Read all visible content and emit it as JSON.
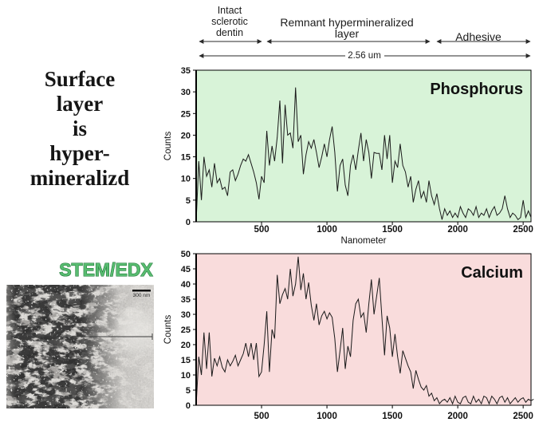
{
  "left_panel": {
    "title": "Surface\nlayer\nis\nhyper-\nmineralizd",
    "technique_label": "STEM/EDX",
    "micrograph": {
      "scale_bar_label": "300 nm"
    }
  },
  "annotations": {
    "zones": [
      {
        "label": "Intact\nsclerotic\ndentin"
      },
      {
        "label": "Remnant hypermineralized\nlayer"
      },
      {
        "label": "Adhesive"
      }
    ],
    "total_width_label": "2.56 um"
  },
  "chart_data": [
    {
      "type": "line",
      "name": "Phosphorus",
      "bg": "#d8f3d8",
      "line_color": "#1a1a1a",
      "xlim": [
        0,
        2560
      ],
      "x_start": 0,
      "x_step": 20,
      "ylim": [
        0,
        35
      ],
      "ytick_step": 5,
      "xticks": [
        500,
        1000,
        1500,
        2000,
        2500
      ],
      "xlabel": "Nanometer",
      "ylabel": "Counts",
      "values": [
        0,
        14,
        5,
        15,
        10.5,
        12,
        8,
        13.5,
        9,
        10,
        7.5,
        8,
        6,
        11.5,
        12,
        9.5,
        11,
        13,
        14.5,
        14,
        15.5,
        13.5,
        11.5,
        9,
        5.2,
        10.5,
        9,
        21,
        13,
        17.5,
        14,
        19.5,
        28,
        13.5,
        27,
        20,
        20.5,
        17,
        31,
        18.5,
        20,
        11,
        15.5,
        18.5,
        17,
        19,
        16,
        12.5,
        15,
        18,
        15,
        19,
        22,
        16,
        7,
        13,
        14.5,
        8.5,
        6,
        13,
        15.5,
        12,
        16.5,
        20.5,
        14,
        19,
        16,
        10,
        16,
        15.8,
        15.8,
        12,
        20,
        14.5,
        20,
        9,
        14,
        12.5,
        18,
        13,
        11.5,
        8,
        10.5,
        4.5,
        7.5,
        9.5,
        5.5,
        7,
        4.5,
        9.5,
        6,
        4,
        6.5,
        3,
        0.5,
        3,
        1.5,
        2.5,
        1,
        2,
        1,
        3.5,
        2,
        1,
        3,
        2.5,
        1.5,
        3.5,
        1,
        2,
        1.5,
        3,
        1,
        2.5,
        3.5,
        1.5,
        2,
        3,
        6,
        3,
        1,
        2,
        1.5,
        0.5,
        1,
        5,
        1,
        2.5,
        1
      ]
    },
    {
      "type": "line",
      "name": "Calcium",
      "bg": "#f9dcdc",
      "line_color": "#1a1a1a",
      "xlim": [
        0,
        2560
      ],
      "x_start": 0,
      "x_step": 20,
      "ylim": [
        0,
        50
      ],
      "ytick_step": 5,
      "xticks": [
        500,
        1000,
        1500,
        2000,
        2500
      ],
      "xlabel": "",
      "ylabel": "Counts",
      "values": [
        0,
        16,
        10,
        24,
        12,
        24,
        9.5,
        15.5,
        13,
        16,
        12.5,
        11,
        15,
        13,
        14.5,
        16.5,
        13,
        15,
        17,
        20.5,
        16,
        20.5,
        15,
        20.5,
        9.5,
        11,
        20,
        31,
        11,
        25,
        22,
        43,
        33.5,
        36.5,
        38.5,
        35,
        45,
        36,
        40,
        49,
        38,
        43.5,
        35,
        40.5,
        33,
        28,
        33.5,
        26.5,
        29.5,
        31,
        28.5,
        30.5,
        29,
        22,
        11,
        18,
        25.5,
        12,
        19.5,
        16,
        28,
        33.5,
        35,
        29,
        30.5,
        24,
        33.5,
        41.5,
        30,
        36,
        42,
        29,
        16.5,
        29.5,
        25.5,
        16,
        23.5,
        16,
        10.5,
        18,
        15.5,
        13,
        11,
        5.5,
        11.5,
        8.5,
        6,
        5,
        6.5,
        3,
        4,
        1.5,
        2.5,
        0.5,
        1.5,
        2,
        1,
        2.5,
        0.5,
        3,
        1,
        0.5,
        2.5,
        3,
        1,
        0.5,
        3,
        1,
        2,
        0.5,
        3,
        2.5,
        0.5,
        3,
        2,
        0.5,
        2.5,
        3,
        1,
        2.5,
        0.5,
        1.5,
        2.5,
        1,
        2,
        2.5,
        1,
        2,
        1.5,
        2
      ]
    }
  ]
}
